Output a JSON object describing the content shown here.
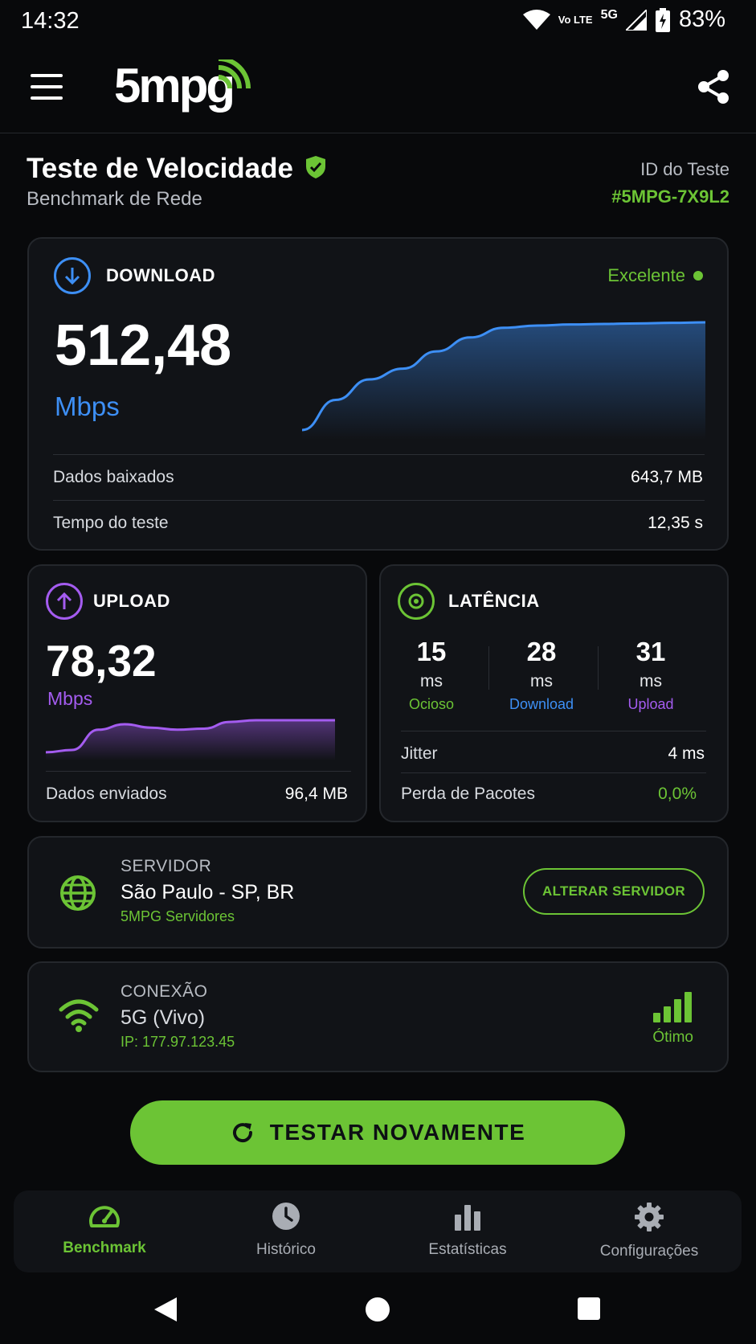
{
  "status_bar": {
    "time": "14:32",
    "volte": "Vo LTE",
    "network": "5G",
    "battery": "83%"
  },
  "app_bar": {
    "logo": "5mpg"
  },
  "header": {
    "title": "Teste de Velocidade",
    "subtitle": "Benchmark de Rede",
    "test_id_label": "ID do Teste",
    "test_id": "#5MPG-7X9L2"
  },
  "download": {
    "label": "DOWNLOAD",
    "quality": "Excelente",
    "value": "512,48",
    "unit": "Mbps",
    "data_label": "Dados baixados",
    "data_value": "643,7 MB",
    "time_label": "Tempo do teste",
    "time_value": "12,35 s",
    "curve": [
      0,
      0.28,
      0.47,
      0.57,
      0.73,
      0.86,
      0.95,
      0.97,
      0.98,
      0.985,
      0.99,
      0.995,
      1.0
    ]
  },
  "upload": {
    "label": "UPLOAD",
    "value": "78,32",
    "unit": "Mbps",
    "data_label": "Dados enviados",
    "data_value": "96,4 MB",
    "curve": [
      0.05,
      0.12,
      0.72,
      0.88,
      0.78,
      0.72,
      0.75,
      0.95,
      1.0,
      1.0,
      1.0,
      1.0
    ]
  },
  "latency": {
    "label": "LATÊNCIA",
    "unit": "ms",
    "idle": {
      "value": "15",
      "name": "Ocioso"
    },
    "download": {
      "value": "28",
      "name": "Download"
    },
    "upload": {
      "value": "31",
      "name": "Upload"
    },
    "jitter_label": "Jitter",
    "jitter_value": "4 ms",
    "loss_label": "Perda de Pacotes",
    "loss_value": "0,0%"
  },
  "server": {
    "label": "SERVIDOR",
    "name": "São Paulo - SP, BR",
    "provider": "5MPG Servidores",
    "change_button": "ALTERAR SERVIDOR"
  },
  "connection": {
    "label": "CONEXÃO",
    "name": "5G (Vivo)",
    "ip": "IP: 177.97.123.45",
    "signal_label": "Ótimo"
  },
  "cta": {
    "label": "TESTAR NOVAMENTE"
  },
  "bottom_nav": {
    "items": [
      {
        "label": "Benchmark",
        "icon": "speedometer-icon"
      },
      {
        "label": "Histórico",
        "icon": "clock-icon"
      },
      {
        "label": "Estatísticas",
        "icon": "bar-chart-icon"
      },
      {
        "label": "Configurações",
        "icon": "gear-icon"
      }
    ]
  },
  "colors": {
    "accent": "#6cc435",
    "download": "#3d8ff5",
    "upload": "#a45cf0",
    "background": "#08090b",
    "card": "#111317"
  }
}
